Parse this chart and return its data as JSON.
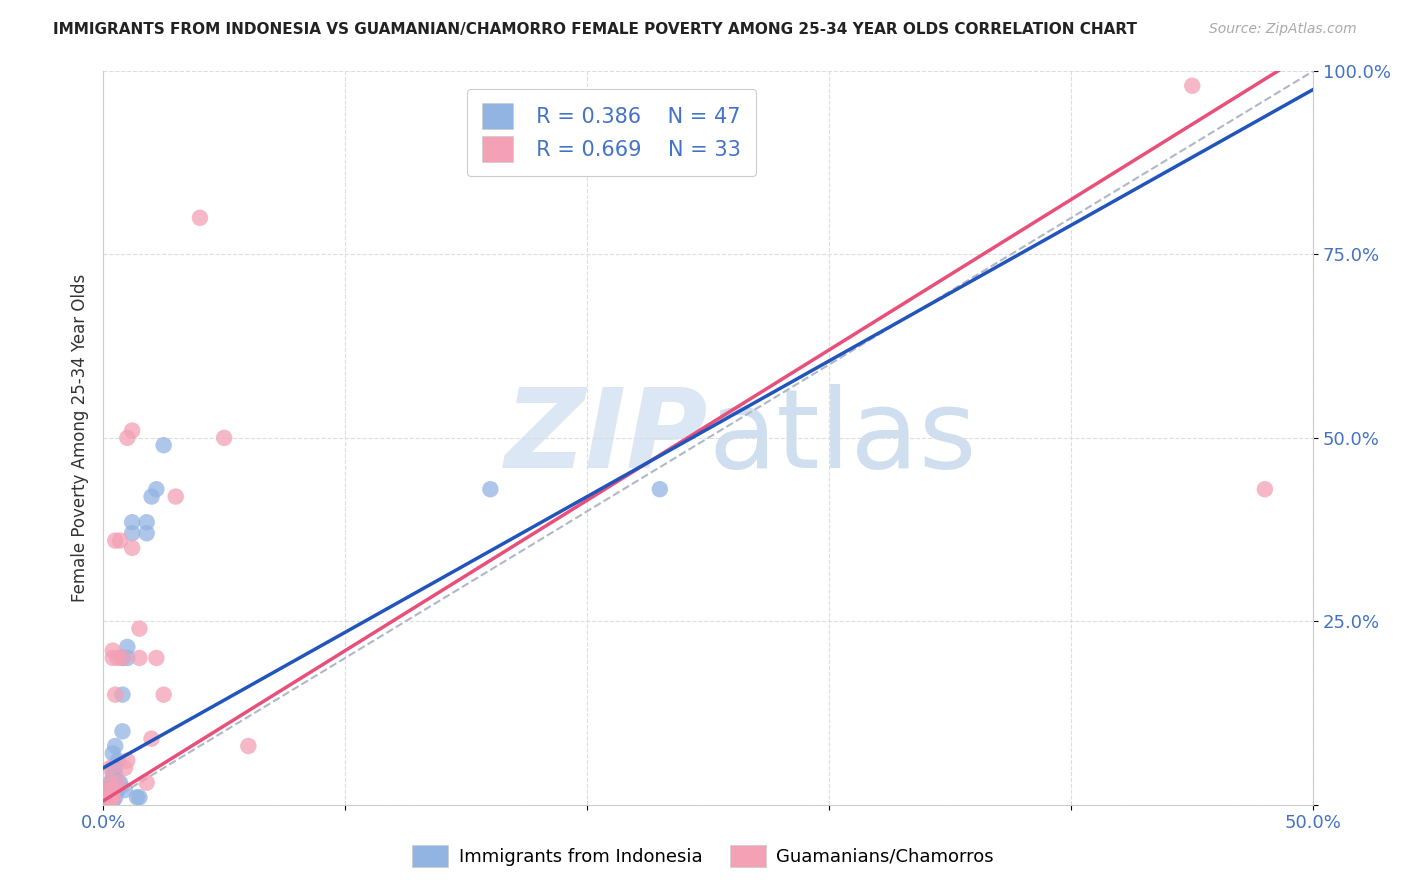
{
  "title": "IMMIGRANTS FROM INDONESIA VS GUAMANIAN/CHAMORRO FEMALE POVERTY AMONG 25-34 YEAR OLDS CORRELATION CHART",
  "source": "Source: ZipAtlas.com",
  "ylabel": "Female Poverty Among 25-34 Year Olds",
  "xlim": [
    0.0,
    0.5
  ],
  "ylim": [
    0.0,
    1.0
  ],
  "xticks": [
    0.0,
    0.1,
    0.2,
    0.3,
    0.4,
    0.5
  ],
  "xticklabels": [
    "0.0%",
    "",
    "",
    "",
    "",
    "50.0%"
  ],
  "yticks": [
    0.0,
    0.25,
    0.5,
    0.75,
    1.0
  ],
  "yticklabels": [
    "",
    "25.0%",
    "50.0%",
    "75.0%",
    "100.0%"
  ],
  "legend_r1": "R = 0.386",
  "legend_n1": "N = 47",
  "legend_r2": "R = 0.669",
  "legend_n2": "N = 33",
  "blue_color": "#92b4e3",
  "pink_color": "#f4a0b5",
  "blue_line_color": "#2255bb",
  "pink_line_color": "#e8507a",
  "text_blue": "#4472c4",
  "bg_color": "#ffffff",
  "grid_color": "#dddddd",
  "blue_scatter_x": [
    0.002,
    0.002,
    0.003,
    0.003,
    0.003,
    0.003,
    0.003,
    0.003,
    0.003,
    0.003,
    0.003,
    0.003,
    0.004,
    0.004,
    0.004,
    0.004,
    0.004,
    0.004,
    0.004,
    0.004,
    0.005,
    0.005,
    0.005,
    0.005,
    0.005,
    0.005,
    0.006,
    0.006,
    0.006,
    0.007,
    0.008,
    0.008,
    0.008,
    0.009,
    0.01,
    0.01,
    0.012,
    0.012,
    0.014,
    0.015,
    0.018,
    0.018,
    0.02,
    0.022,
    0.025,
    0.16,
    0.23
  ],
  "blue_scatter_y": [
    0.005,
    0.008,
    0.005,
    0.008,
    0.01,
    0.012,
    0.015,
    0.018,
    0.02,
    0.022,
    0.025,
    0.03,
    0.005,
    0.01,
    0.015,
    0.02,
    0.03,
    0.04,
    0.05,
    0.07,
    0.01,
    0.025,
    0.03,
    0.04,
    0.05,
    0.08,
    0.02,
    0.03,
    0.06,
    0.03,
    0.1,
    0.15,
    0.2,
    0.02,
    0.2,
    0.215,
    0.37,
    0.385,
    0.01,
    0.01,
    0.37,
    0.385,
    0.42,
    0.43,
    0.49,
    0.43,
    0.43
  ],
  "pink_scatter_x": [
    0.002,
    0.003,
    0.003,
    0.003,
    0.003,
    0.003,
    0.004,
    0.004,
    0.004,
    0.004,
    0.005,
    0.005,
    0.006,
    0.006,
    0.007,
    0.008,
    0.009,
    0.01,
    0.01,
    0.012,
    0.012,
    0.015,
    0.015,
    0.018,
    0.02,
    0.022,
    0.025,
    0.03,
    0.04,
    0.05,
    0.06,
    0.45,
    0.48
  ],
  "pink_scatter_y": [
    0.005,
    0.005,
    0.01,
    0.02,
    0.03,
    0.05,
    0.01,
    0.02,
    0.2,
    0.21,
    0.15,
    0.36,
    0.03,
    0.2,
    0.36,
    0.2,
    0.05,
    0.06,
    0.5,
    0.35,
    0.51,
    0.2,
    0.24,
    0.03,
    0.09,
    0.2,
    0.15,
    0.42,
    0.8,
    0.5,
    0.08,
    0.98,
    0.43
  ],
  "pink_line_slope": 2.05,
  "pink_line_intercept": 0.005,
  "blue_line_slope": 1.85,
  "blue_line_intercept": 0.05
}
